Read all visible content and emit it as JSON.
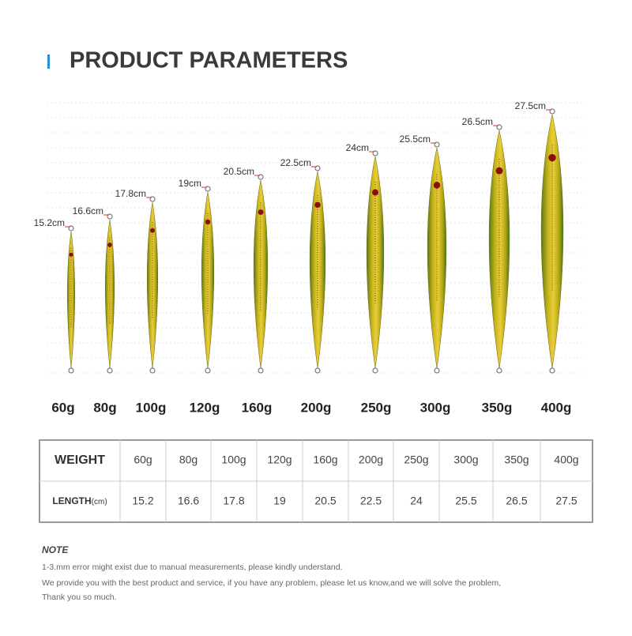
{
  "header": {
    "title": "PRODUCT PARAMETERS"
  },
  "lures": [
    {
      "length": "15.2cm",
      "weight": "60g"
    },
    {
      "length": "16.6cm",
      "weight": "80g"
    },
    {
      "length": "17.8cm",
      "weight": "100g"
    },
    {
      "length": "19cm",
      "weight": "120g"
    },
    {
      "length": "20.5cm",
      "weight": "160g"
    },
    {
      "length": "22.5cm",
      "weight": "200g"
    },
    {
      "length": "24cm",
      "weight": "250g"
    },
    {
      "length": "25.5cm",
      "weight": "300g"
    },
    {
      "length": "26.5cm",
      "weight": "350g"
    },
    {
      "length": "27.5cm",
      "weight": "400g"
    }
  ],
  "table": {
    "unit": "(cm)",
    "rows": [
      [
        "WEIGHT",
        "60g",
        "80g",
        "100g",
        "120g",
        "160g",
        "200g",
        "250g",
        "300g",
        "350g",
        "400g"
      ],
      [
        "LENGTH",
        "15.2",
        "16.6",
        "17.8",
        "19",
        "20.5",
        "22.5",
        "24",
        "25.5",
        "26.5",
        "27.5"
      ]
    ]
  },
  "note": {
    "title": "NOTE",
    "lines": [
      "1-3.mm error might exist due to manual measurements, please kindly understand.",
      "We provide you with the best product and service, if you have any problem, please let us know,and we will solve the problem,",
      "Thank you so much."
    ]
  }
}
